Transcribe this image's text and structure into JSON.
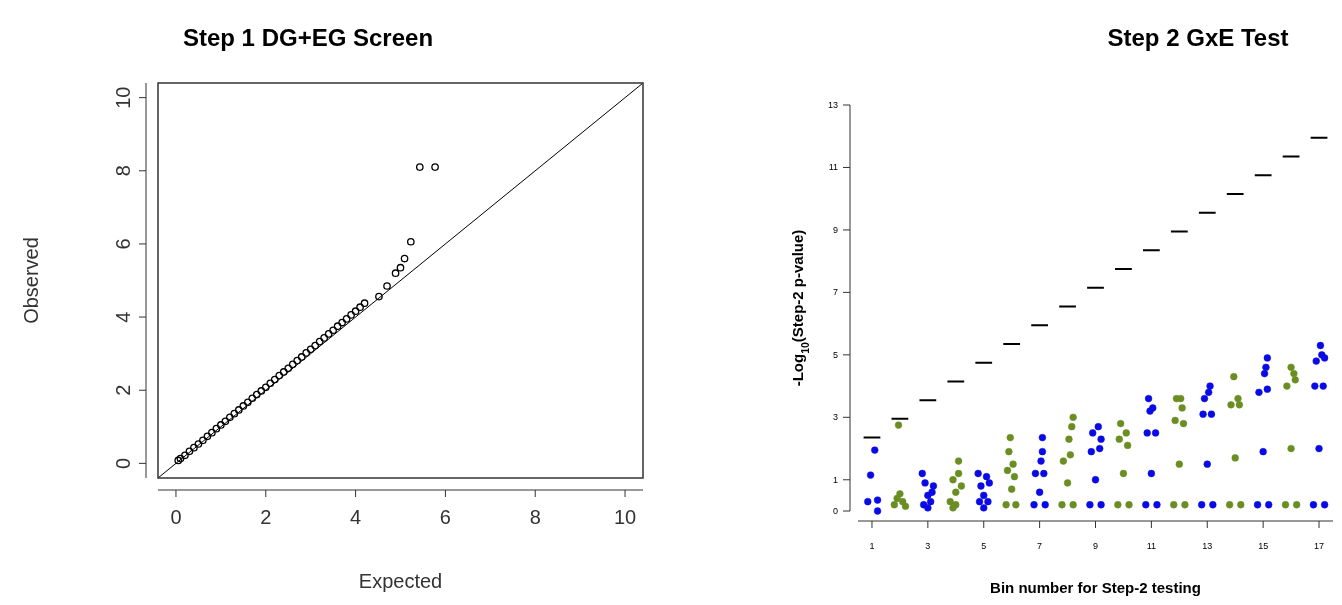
{
  "chart_data": [
    {
      "type": "scatter",
      "title": "Step 1 DG+EG Screen",
      "xlabel": "Expected",
      "ylabel": "Observed",
      "xlim": [
        -0.4,
        10.4
      ],
      "ylim": [
        -0.4,
        10.4
      ],
      "xticks": [
        0,
        2,
        4,
        6,
        8,
        10
      ],
      "yticks": [
        0,
        2,
        4,
        6,
        8,
        10
      ],
      "marker": "circle",
      "series": [
        {
          "type": "line",
          "marker": "none",
          "color": "#000000",
          "x": [
            -0.4,
            10.4
          ],
          "values": [
            -0.4,
            10.4
          ]
        },
        {
          "color": "#000000",
          "x": [
            0.05,
            0.1,
            0.2,
            0.3,
            0.4,
            0.5,
            0.6,
            0.7,
            0.8,
            0.9,
            1.0,
            1.1,
            1.2,
            1.3,
            1.4,
            1.5,
            1.6,
            1.7,
            1.8,
            1.9,
            2.0,
            2.1,
            2.2,
            2.3,
            2.4,
            2.5,
            2.6,
            2.7,
            2.8,
            2.9,
            3.0,
            3.1,
            3.2,
            3.3,
            3.4,
            3.5,
            3.6,
            3.7,
            3.8,
            3.9,
            4.0,
            4.1,
            4.2,
            4.52,
            4.7,
            4.89,
            5.0,
            5.09,
            5.23,
            5.43,
            5.77
          ],
          "values": [
            0.08,
            0.13,
            0.22,
            0.33,
            0.43,
            0.53,
            0.63,
            0.74,
            0.84,
            0.95,
            1.05,
            1.15,
            1.26,
            1.36,
            1.46,
            1.57,
            1.67,
            1.78,
            1.88,
            1.98,
            2.08,
            2.19,
            2.29,
            2.4,
            2.5,
            2.6,
            2.71,
            2.81,
            2.91,
            3.02,
            3.12,
            3.22,
            3.33,
            3.43,
            3.54,
            3.64,
            3.75,
            3.85,
            3.95,
            4.06,
            4.16,
            4.27,
            4.38,
            4.56,
            4.85,
            5.2,
            5.35,
            5.6,
            6.06,
            8.1,
            8.1
          ]
        }
      ]
    },
    {
      "type": "scatter",
      "title": "Step 2 GxE Test",
      "xlabel": "Bin number for Step-2 testing",
      "ylabel": "-Log$_{10}$(Step-2 p-value)",
      "xlim": [
        0.5,
        17.5
      ],
      "ylim": [
        0,
        13
      ],
      "xticks": [
        1,
        3,
        5,
        7,
        9,
        11,
        13,
        15,
        17
      ],
      "yticks": [
        0,
        1,
        3,
        5,
        7,
        9,
        11,
        13
      ],
      "marker": "circle",
      "series": [
        {
          "color": "#0a0ae6",
          "x": [
            0.85,
            0.95,
            1.1,
            1.2,
            1.2,
            2.8,
            2.9,
            3.0,
            3.1,
            3.2,
            3.0,
            2.85,
            3.15,
            4.8,
            4.9,
            5.0,
            5.1,
            5.2,
            5.0,
            4.85,
            5.15,
            6.8,
            6.85,
            7.0,
            7.15,
            7.2,
            7.05,
            7.1,
            7.1,
            8.8,
            8.85,
            9.0,
            9.15,
            9.2,
            8.9,
            9.1,
            9.2,
            10.8,
            10.85,
            11.0,
            11.15,
            11.2,
            10.9,
            10.95,
            11.05,
            12.8,
            12.85,
            13.0,
            13.15,
            13.2,
            12.9,
            13.05,
            13.1,
            14.8,
            14.85,
            15.0,
            15.15,
            15.2,
            15.05,
            15.1,
            15.15,
            16.8,
            16.85,
            17.0,
            17.15,
            17.2,
            16.9,
            17.05,
            17.1,
            17.2
          ],
          "values": [
            0.3,
            1.15,
            1.95,
            0.35,
            0.0,
            1.2,
            0.9,
            0.5,
            0.3,
            0.8,
            0.1,
            0.2,
            0.6,
            1.2,
            0.8,
            0.5,
            1.1,
            0.9,
            0.1,
            0.3,
            0.3,
            0.2,
            1.2,
            0.6,
            1.2,
            0.2,
            1.6,
            1.9,
            2.35,
            0.2,
            1.9,
            1.0,
            2.0,
            0.2,
            2.5,
            2.7,
            2.3,
            0.2,
            2.5,
            1.2,
            2.5,
            0.2,
            3.6,
            3.2,
            3.3,
            0.2,
            3.1,
            1.5,
            3.1,
            0.2,
            3.6,
            3.8,
            4.0,
            0.2,
            3.8,
            1.9,
            3.9,
            0.2,
            4.4,
            4.6,
            4.9,
            0.2,
            4.0,
            2.0,
            4.0,
            0.2,
            4.8,
            5.3,
            5.0,
            4.9
          ]
        },
        {
          "color": "#6b8e23",
          "x": [
            1.8,
            1.9,
            2.0,
            2.1,
            2.2,
            1.95,
            3.8,
            3.9,
            4.0,
            4.1,
            4.2,
            4.0,
            4.1,
            3.9,
            5.8,
            5.85,
            6.0,
            6.1,
            6.15,
            5.9,
            5.95,
            6.05,
            7.8,
            7.85,
            8.0,
            8.1,
            8.2,
            8.05,
            8.15,
            8.2,
            9.8,
            9.85,
            10.0,
            10.15,
            10.2,
            9.9,
            10.1,
            11.8,
            11.85,
            12.0,
            12.15,
            12.2,
            11.9,
            12.05,
            12.1,
            13.8,
            13.85,
            14.0,
            14.15,
            14.2,
            13.95,
            14.1,
            15.8,
            15.85,
            16.0,
            16.15,
            16.2,
            16.0,
            16.1
          ],
          "values": [
            0.2,
            0.4,
            0.55,
            0.3,
            0.15,
            2.75,
            0.3,
            1.0,
            0.6,
            1.6,
            0.8,
            0.2,
            1.2,
            0.1,
            0.2,
            1.3,
            0.7,
            1.1,
            0.2,
            1.9,
            2.35,
            1.5,
            0.2,
            1.6,
            0.9,
            1.8,
            0.2,
            2.3,
            2.7,
            3.0,
            0.2,
            2.3,
            1.2,
            2.1,
            0.2,
            2.8,
            2.5,
            0.2,
            2.9,
            1.5,
            2.8,
            0.2,
            3.6,
            3.6,
            3.3,
            0.2,
            3.4,
            1.7,
            3.4,
            0.2,
            4.3,
            3.6,
            0.2,
            4.0,
            2.0,
            4.2,
            0.2,
            4.6,
            4.4
          ]
        },
        {
          "type": "line",
          "marker": "none",
          "color": "#000000",
          "x": [
            0.7,
            1.3,
            1.5,
            1.7,
            2.3,
            2.5,
            2.7,
            3.3,
            3.5,
            3.7,
            4.3,
            4.5,
            4.7,
            5.3,
            5.5,
            5.7,
            6.3,
            6.5,
            6.7,
            7.3,
            7.5,
            7.7,
            8.3,
            8.5,
            8.7,
            9.3,
            9.5,
            9.7,
            10.3,
            10.5,
            10.7,
            11.3,
            11.5,
            11.7,
            12.3,
            12.5,
            12.7,
            13.3,
            13.5,
            13.7,
            14.3,
            14.5,
            14.7,
            15.3,
            15.5,
            15.7,
            16.3,
            16.5,
            16.7,
            17.3
          ],
          "values": [
            2.35,
            2.35,
            null,
            2.95,
            2.95,
            null,
            3.55,
            3.55,
            null,
            4.15,
            4.15,
            null,
            4.75,
            4.75,
            null,
            5.35,
            5.35,
            null,
            5.95,
            5.95,
            null,
            6.55,
            6.55,
            null,
            7.15,
            7.15,
            null,
            7.75,
            7.75,
            null,
            8.35,
            8.35,
            null,
            8.95,
            8.95,
            null,
            9.55,
            9.55,
            null,
            10.15,
            10.15,
            null,
            10.75,
            10.75,
            null,
            11.35,
            11.35,
            null,
            11.95,
            11.95
          ]
        }
      ]
    }
  ]
}
